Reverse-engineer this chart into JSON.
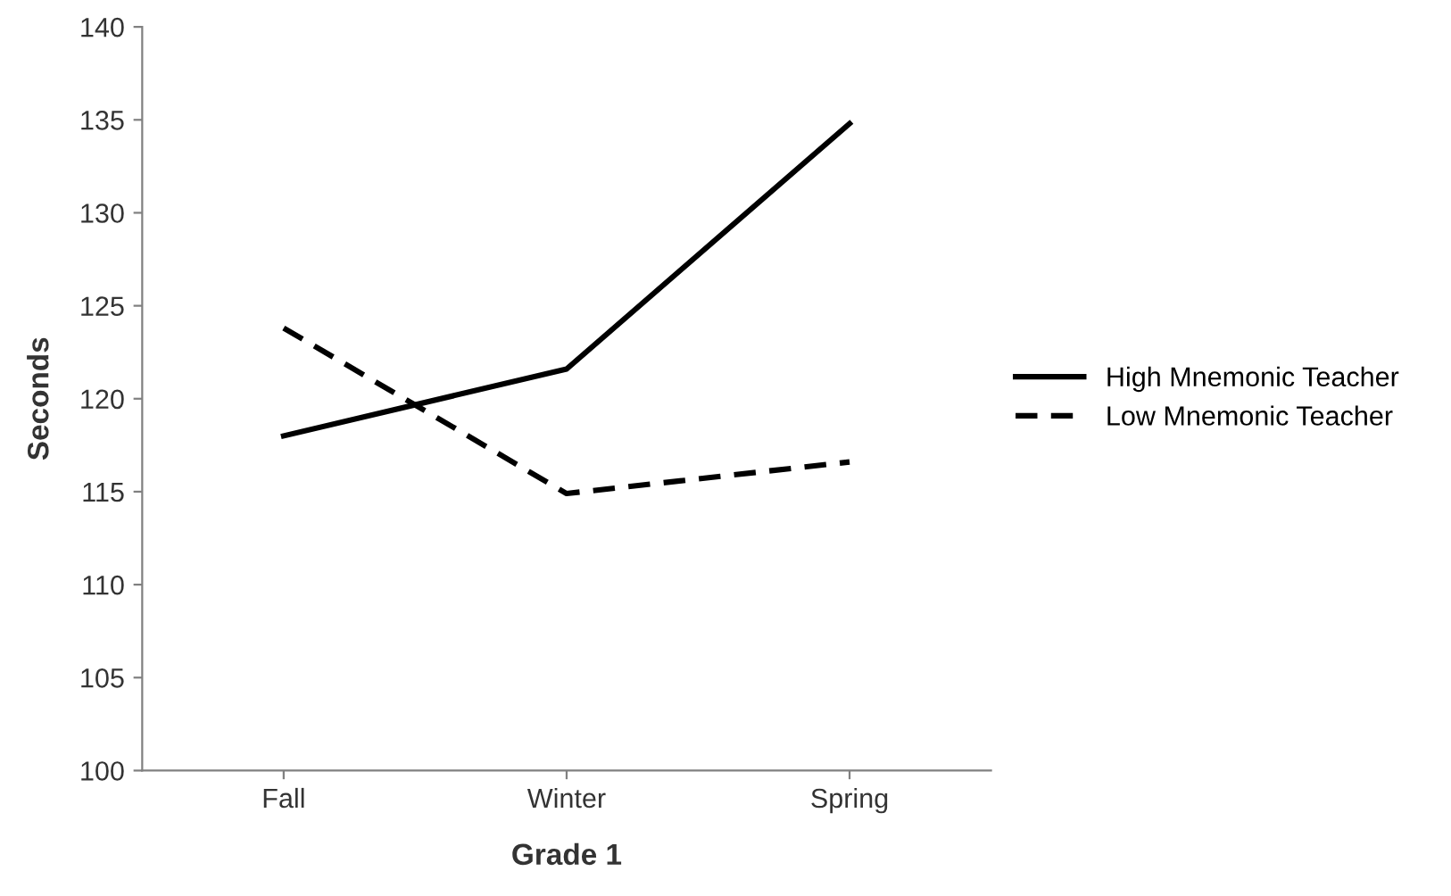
{
  "chart_data": {
    "type": "line",
    "xlabel": "Grade 1",
    "ylabel": "Seconds",
    "categories": [
      "Fall",
      "Winter",
      "Spring"
    ],
    "series": [
      {
        "name": "High Mnemonic Teacher",
        "color": "#000000",
        "line_style": "solid",
        "values": [
          118,
          121.6,
          134.8
        ]
      },
      {
        "name": "Low Mnemonic Teacher",
        "color": "#000000",
        "line_style": "dashed",
        "values": [
          123.8,
          114.9,
          116.6
        ]
      }
    ],
    "ylim": [
      100,
      140
    ],
    "yticks": [
      100,
      105,
      110,
      115,
      120,
      125,
      130,
      135,
      140
    ],
    "grid": false,
    "legend": "right",
    "marker": "none"
  }
}
